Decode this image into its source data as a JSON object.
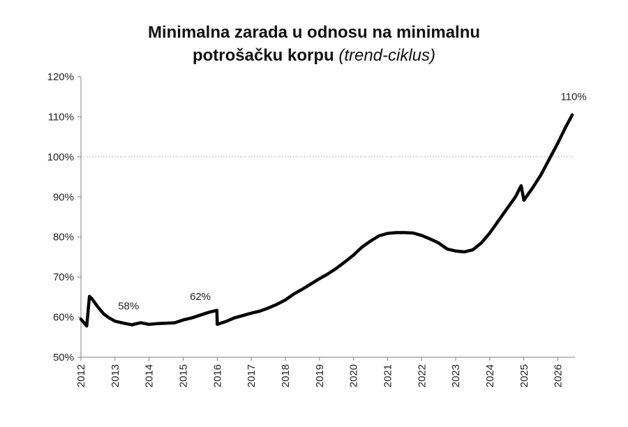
{
  "chart_data": {
    "type": "line",
    "title_line1": "Minimalna zarada u odnosu na minimalnu",
    "title_line2_main": "potrošačku korpu",
    "title_line2_italic": "(trend-ciklus)",
    "xlabel": "",
    "ylabel": "",
    "ylim": [
      50,
      120
    ],
    "xlim": [
      2012,
      2026.5
    ],
    "y_ticks": [
      "50%",
      "60%",
      "70%",
      "80%",
      "90%",
      "100%",
      "110%",
      "120%"
    ],
    "y_tick_values": [
      50,
      60,
      70,
      80,
      90,
      100,
      110,
      120
    ],
    "x_ticks": [
      "2012",
      "2013",
      "2014",
      "2015",
      "2016",
      "2017",
      "2018",
      "2019",
      "2020",
      "2021",
      "2022",
      "2023",
      "2024",
      "2025",
      "2026"
    ],
    "x_tick_values": [
      2012,
      2013,
      2014,
      2015,
      2016,
      2017,
      2018,
      2019,
      2020,
      2021,
      2022,
      2023,
      2024,
      2025,
      2026
    ],
    "reference_line": {
      "y": 100,
      "style": "dotted"
    },
    "grid": false,
    "series": [
      {
        "color": "#000000",
        "x": [
          2012.0,
          2012.17,
          2012.25,
          2012.33,
          2012.5,
          2012.67,
          2012.83,
          2013.0,
          2013.25,
          2013.5,
          2013.75,
          2014.0,
          2014.25,
          2014.5,
          2014.75,
          2015.0,
          2015.25,
          2015.5,
          2015.75,
          2015.99,
          2016.0,
          2016.25,
          2016.5,
          2016.75,
          2017.0,
          2017.25,
          2017.5,
          2017.75,
          2018.0,
          2018.25,
          2018.5,
          2018.75,
          2019.0,
          2019.25,
          2019.5,
          2019.75,
          2020.0,
          2020.25,
          2020.5,
          2020.75,
          2021.0,
          2021.25,
          2021.5,
          2021.75,
          2022.0,
          2022.25,
          2022.5,
          2022.75,
          2023.0,
          2023.25,
          2023.5,
          2023.75,
          2024.0,
          2024.25,
          2024.5,
          2024.75,
          2024.92,
          2025.0,
          2025.25,
          2025.5,
          2025.75,
          2026.0,
          2026.2,
          2026.42
        ],
        "values": [
          59.5,
          57.8,
          65.2,
          64.5,
          62.5,
          60.8,
          59.8,
          59.0,
          58.5,
          58.1,
          58.6,
          58.2,
          58.4,
          58.5,
          58.6,
          59.3,
          59.8,
          60.5,
          61.2,
          61.7,
          58.2,
          58.9,
          59.8,
          60.4,
          61.0,
          61.5,
          62.3,
          63.2,
          64.3,
          65.8,
          67.0,
          68.3,
          69.6,
          70.8,
          72.2,
          73.8,
          75.5,
          77.5,
          79.0,
          80.3,
          80.9,
          81.1,
          81.1,
          81.0,
          80.4,
          79.5,
          78.5,
          77.0,
          76.5,
          76.3,
          76.8,
          78.5,
          81.0,
          84.0,
          87.0,
          90.0,
          92.8,
          89.2,
          92.2,
          95.5,
          99.5,
          103.5,
          107.0,
          110.5
        ]
      }
    ],
    "annotations": [
      {
        "text": "58%",
        "x": 2013.5,
        "y": 58.1
      },
      {
        "text": "62%",
        "x": 2015.75,
        "y": 61.7
      },
      {
        "text": "110%",
        "x": 2026.42,
        "y": 110.5
      }
    ]
  }
}
